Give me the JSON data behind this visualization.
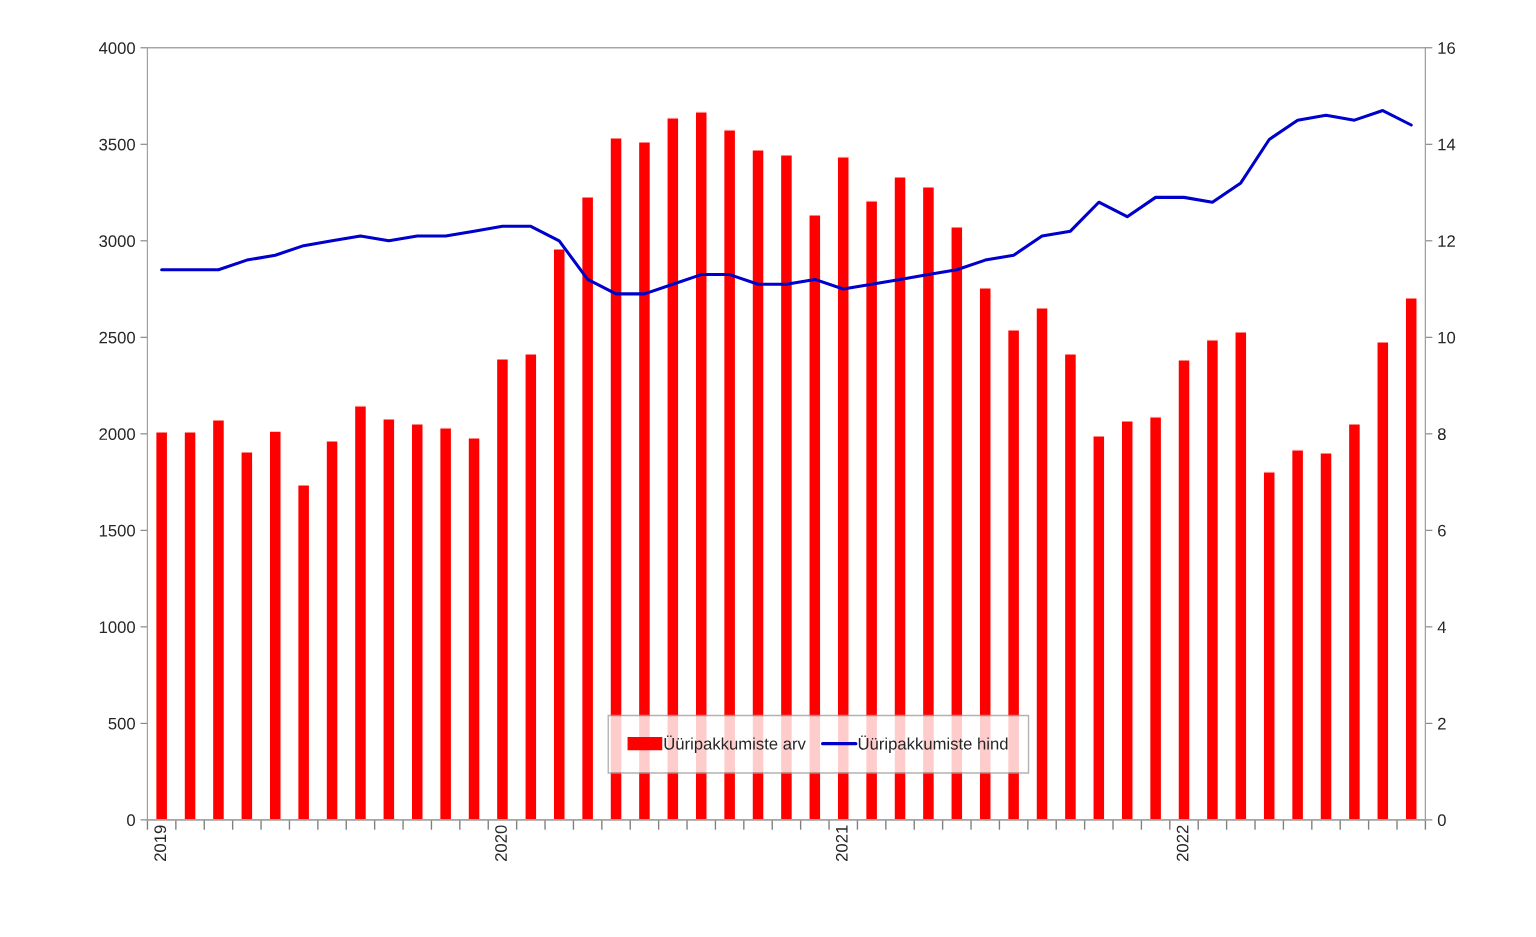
{
  "chart_data": {
    "type": "bar",
    "categories": [
      "2019",
      null,
      null,
      null,
      null,
      null,
      null,
      null,
      null,
      null,
      null,
      null,
      "2020",
      null,
      null,
      null,
      null,
      null,
      null,
      null,
      null,
      null,
      null,
      null,
      "2021",
      null,
      null,
      null,
      null,
      null,
      null,
      null,
      null,
      null,
      null,
      null,
      "2022",
      null,
      null,
      null,
      null,
      null,
      null,
      null,
      null
    ],
    "series": [
      {
        "name": "Üüripakkumiste arv",
        "color": "#ff0000",
        "values": [
          2010,
          2010,
          2073,
          1907,
          2015,
          1736,
          1964,
          2145,
          2078,
          2052,
          2031,
          1979,
          2389,
          2414,
          2958,
          3228,
          3534,
          3513,
          3637,
          3668,
          3575,
          3471,
          3446,
          3135,
          3435,
          3207,
          3332,
          3280,
          3073,
          2756,
          2539,
          2653,
          2414,
          1990,
          2067,
          2088,
          2383,
          2487,
          2528,
          1803,
          1917,
          1902,
          2052,
          2477,
          2705
        ]
      },
      {
        "name": "Üüripakkumiste hind",
        "type": "line",
        "axis": "y2",
        "color": "#0000cc",
        "values": [
          11.4,
          11.4,
          11.4,
          11.6,
          11.7,
          11.9,
          12.0,
          12.1,
          12.0,
          12.1,
          12.1,
          12.2,
          12.3,
          12.3,
          12.0,
          11.2,
          10.9,
          10.9,
          11.1,
          11.3,
          11.3,
          11.1,
          11.1,
          11.2,
          11.0,
          11.1,
          11.2,
          11.3,
          11.4,
          11.6,
          11.7,
          12.1,
          12.2,
          12.8,
          12.5,
          12.9,
          12.9,
          12.8,
          13.2,
          14.1,
          14.5,
          14.6,
          14.5,
          14.7,
          14.4
        ]
      }
    ],
    "ylim": [
      0,
      4000
    ],
    "yticks": [
      0,
      500,
      1000,
      1500,
      2000,
      2500,
      3000,
      3500,
      4000
    ],
    "y2lim": [
      0,
      16
    ],
    "y2ticks": [
      0,
      2,
      4,
      6,
      8,
      10,
      12,
      14,
      16
    ],
    "grid": false,
    "legend": "bottom"
  }
}
